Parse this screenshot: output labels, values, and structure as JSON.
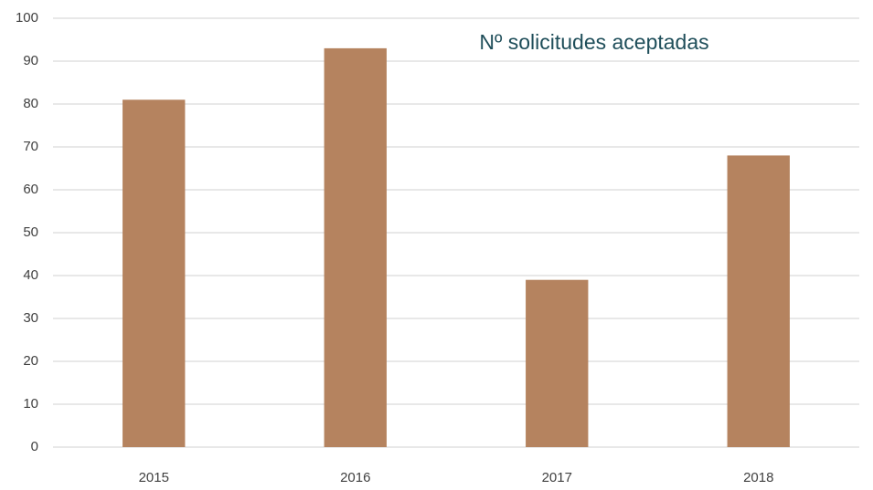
{
  "chart_data": {
    "type": "bar",
    "title": "Nº solicitudes aceptadas",
    "categories": [
      "2015",
      "2016",
      "2017",
      "2018"
    ],
    "values": [
      81,
      93,
      39,
      68
    ],
    "color": "#b5835f",
    "ylim": [
      0,
      100
    ],
    "yticks": [
      0,
      10,
      20,
      30,
      40,
      50,
      60,
      70,
      80,
      90,
      100
    ],
    "grid": true
  }
}
